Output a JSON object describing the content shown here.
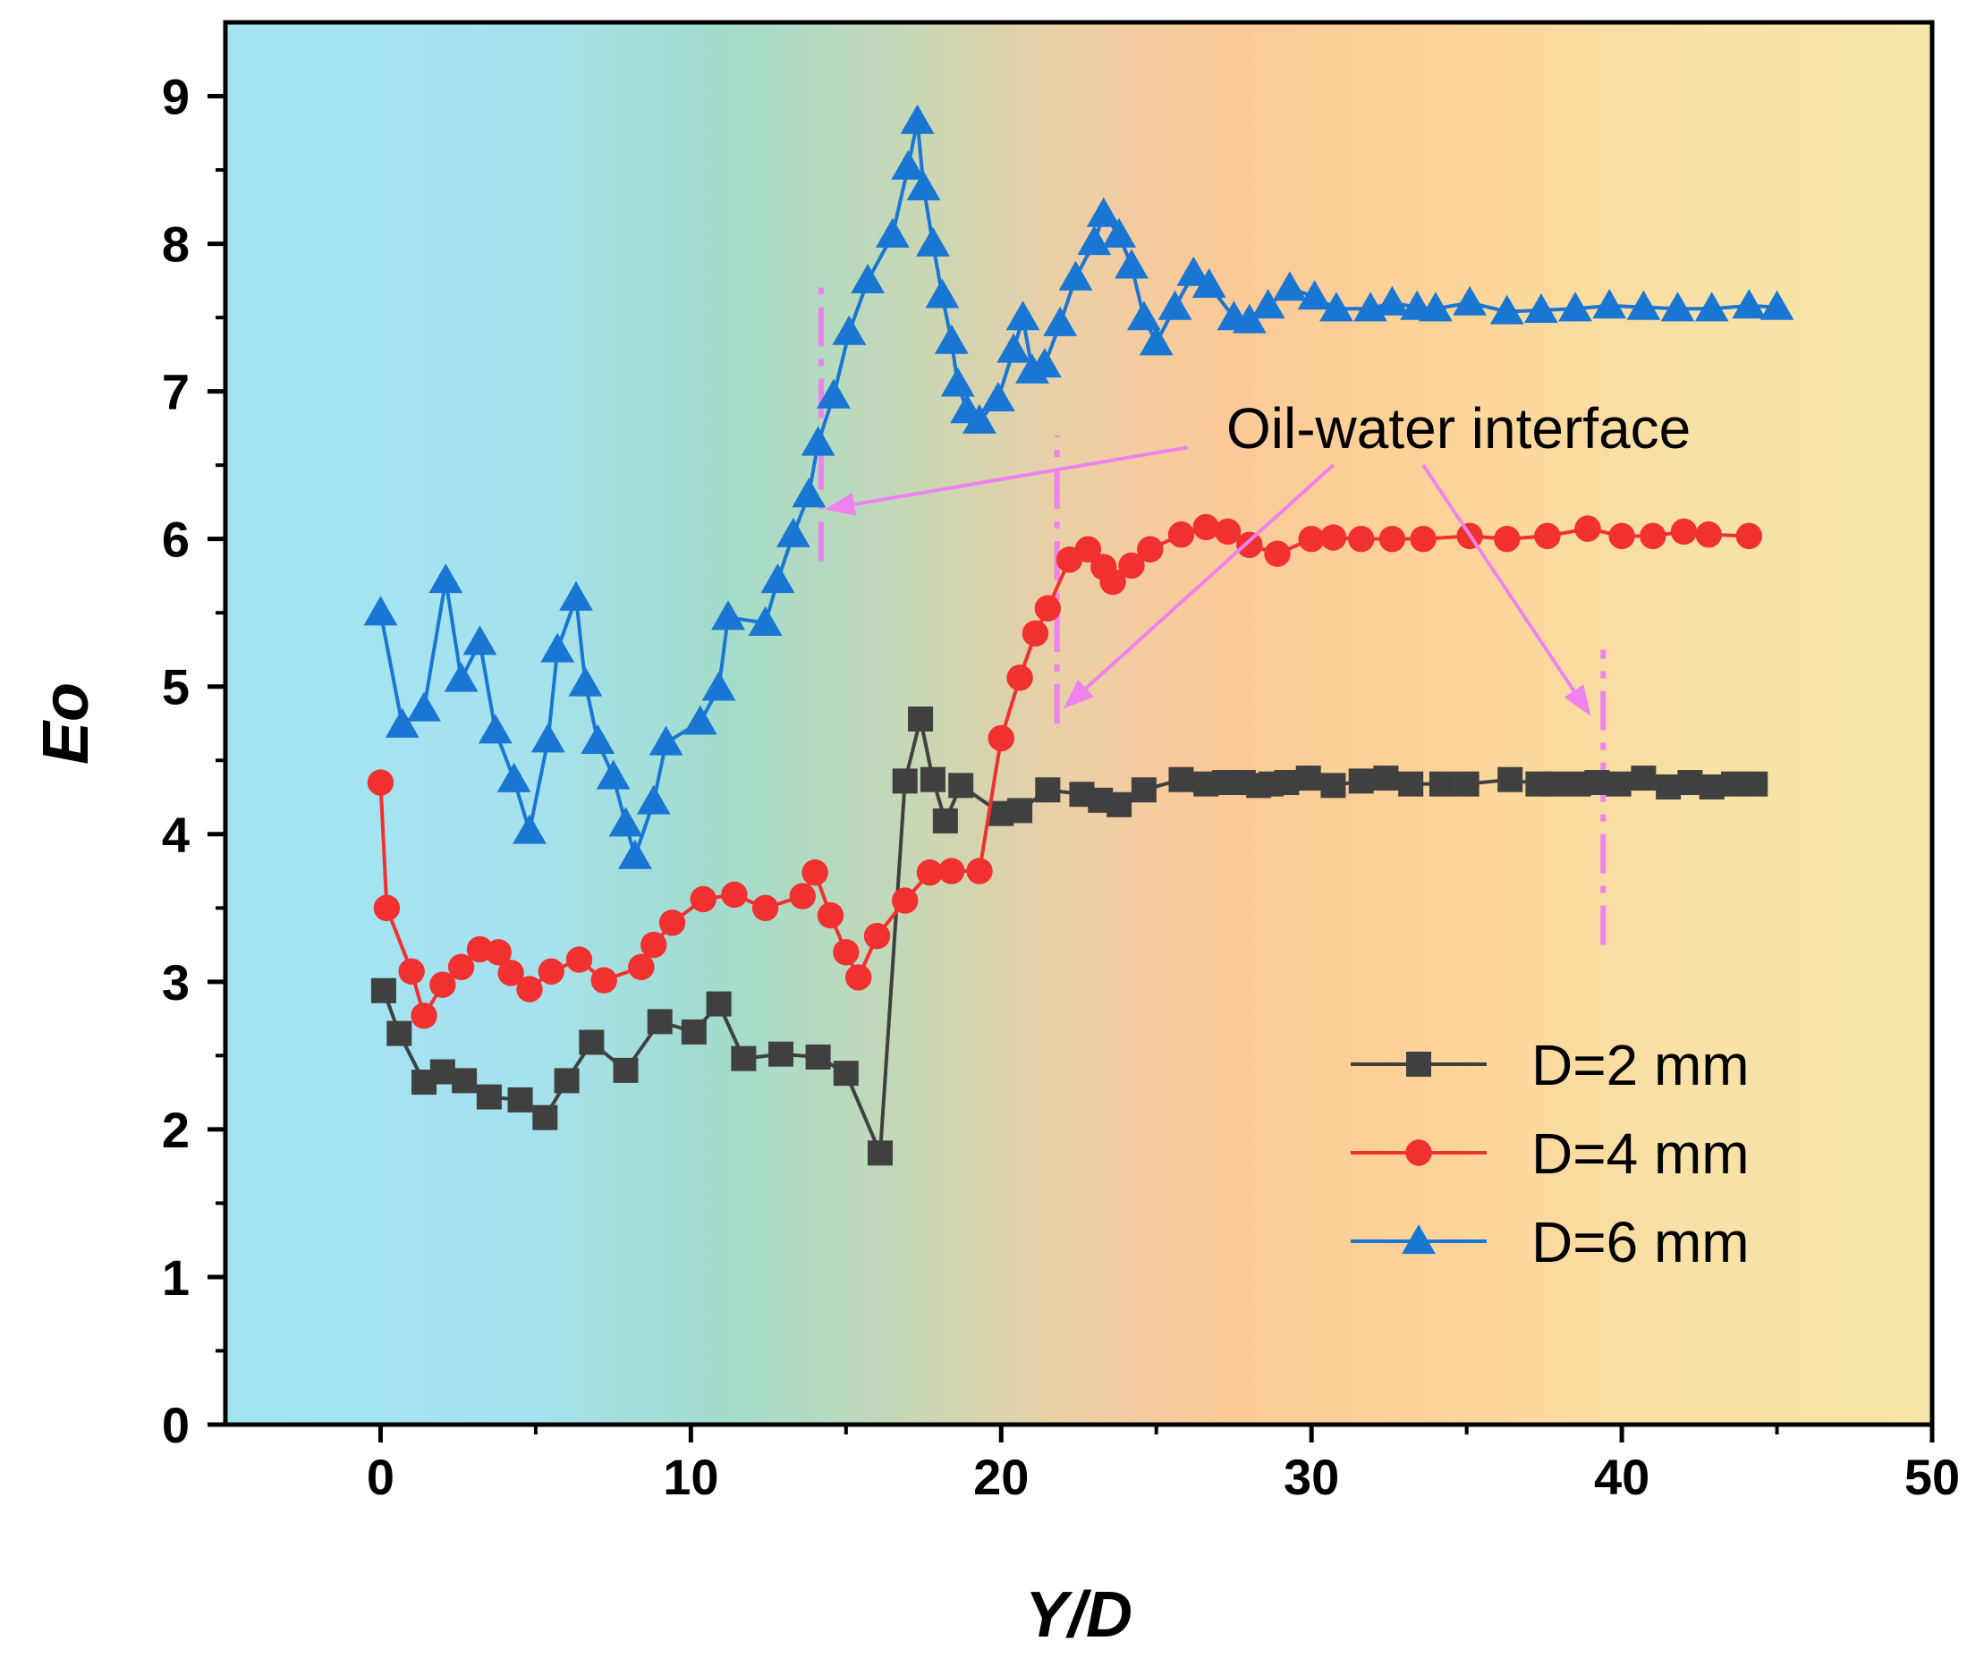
{
  "chart_data": {
    "type": "line",
    "title": "",
    "xlabel": "Y/D",
    "ylabel": "Eo",
    "xlim": [
      -5,
      50
    ],
    "ylim": [
      0,
      9.5
    ],
    "xticks": [
      0,
      10,
      20,
      30,
      40,
      50
    ],
    "yticks": [
      0,
      1,
      2,
      3,
      4,
      5,
      6,
      7,
      8,
      9
    ],
    "background": {
      "type": "horizontal-gradient",
      "stops": [
        {
          "x": -5,
          "color": "#a3e4f2"
        },
        {
          "x": 5,
          "color": "#a6e2ee"
        },
        {
          "x": 11,
          "color": "#a2dccc"
        },
        {
          "x": 17,
          "color": "#c6d8b6"
        },
        {
          "x": 22,
          "color": "#ebcfa6"
        },
        {
          "x": 27,
          "color": "#fcc998"
        },
        {
          "x": 34,
          "color": "#fdd398"
        },
        {
          "x": 42,
          "color": "#f8e1a6"
        },
        {
          "x": 50,
          "color": "#f7e6a9"
        }
      ]
    },
    "legend": {
      "position": "lower-right",
      "entries": [
        "D=2 mm",
        "D=4 mm",
        "D=6 mm"
      ]
    },
    "series": [
      {
        "name": "D=2 mm",
        "color": "#404040",
        "marker": "square",
        "x": [
          0.1,
          0.6,
          1.4,
          2.0,
          2.7,
          3.5,
          4.5,
          5.3,
          6.0,
          6.8,
          7.9,
          9.0,
          10.1,
          10.9,
          11.7,
          12.9,
          14.1,
          15.0,
          16.1,
          16.9,
          17.4,
          17.8,
          18.2,
          18.7,
          20.0,
          20.6,
          21.5,
          22.6,
          23.2,
          23.8,
          24.6,
          25.8,
          26.6,
          27.2,
          27.8,
          28.3,
          28.7,
          29.2,
          29.9,
          30.7,
          31.6,
          32.4,
          33.2,
          34.2,
          35.0,
          36.4,
          37.3,
          37.8,
          38.6,
          39.2,
          39.9,
          40.7,
          41.5,
          42.2,
          42.9,
          43.6,
          44.3
        ],
        "y": [
          2.94,
          2.65,
          2.32,
          2.39,
          2.33,
          2.22,
          2.2,
          2.08,
          2.33,
          2.59,
          2.4,
          2.73,
          2.66,
          2.85,
          2.48,
          2.51,
          2.49,
          2.38,
          1.84,
          4.36,
          4.78,
          4.37,
          4.09,
          4.33,
          4.14,
          4.16,
          4.3,
          4.27,
          4.23,
          4.2,
          4.3,
          4.37,
          4.34,
          4.35,
          4.35,
          4.33,
          4.34,
          4.35,
          4.38,
          4.33,
          4.36,
          4.38,
          4.34,
          4.34,
          4.34,
          4.37,
          4.34,
          4.34,
          4.34,
          4.35,
          4.34,
          4.38,
          4.32,
          4.35,
          4.32,
          4.34,
          4.34
        ]
      },
      {
        "name": "D=4 mm",
        "color": "#f13030",
        "marker": "circle",
        "x": [
          0.0,
          0.2,
          1.0,
          1.4,
          2.0,
          2.6,
          3.2,
          3.8,
          4.2,
          4.8,
          5.5,
          6.4,
          7.2,
          8.4,
          8.8,
          9.4,
          10.4,
          11.4,
          12.4,
          13.6,
          14.0,
          14.5,
          15.0,
          15.4,
          16.0,
          16.9,
          17.7,
          18.4,
          19.3,
          20.0,
          20.6,
          21.1,
          21.5,
          22.2,
          22.8,
          23.3,
          23.6,
          24.2,
          24.8,
          25.8,
          26.6,
          27.3,
          28.0,
          28.9,
          30.0,
          30.7,
          31.6,
          32.6,
          33.6,
          35.1,
          36.3,
          37.6,
          38.9,
          40.0,
          41.0,
          42.0,
          42.8,
          44.1
        ],
        "y": [
          4.35,
          3.5,
          3.07,
          2.77,
          2.98,
          3.1,
          3.22,
          3.2,
          3.06,
          2.95,
          3.07,
          3.15,
          3.01,
          3.1,
          3.25,
          3.4,
          3.56,
          3.59,
          3.5,
          3.58,
          3.74,
          3.45,
          3.2,
          3.03,
          3.31,
          3.55,
          3.74,
          3.75,
          3.75,
          4.65,
          5.06,
          5.36,
          5.53,
          5.86,
          5.93,
          5.81,
          5.71,
          5.82,
          5.93,
          6.03,
          6.08,
          6.05,
          5.96,
          5.9,
          6.0,
          6.01,
          6.0,
          6.0,
          6.0,
          6.02,
          6.0,
          6.02,
          6.07,
          6.02,
          6.02,
          6.05,
          6.03,
          6.02
        ]
      },
      {
        "name": "D=6 mm",
        "color": "#1976d2",
        "marker": "triangle",
        "x": [
          0.0,
          0.7,
          1.4,
          2.1,
          2.6,
          3.2,
          3.7,
          4.3,
          4.8,
          5.4,
          5.7,
          6.3,
          6.6,
          7.0,
          7.5,
          7.9,
          8.2,
          8.8,
          9.2,
          10.3,
          10.9,
          11.2,
          12.4,
          12.8,
          13.3,
          13.8,
          14.1,
          14.6,
          15.1,
          15.7,
          16.5,
          17.0,
          17.3,
          17.5,
          17.8,
          18.1,
          18.4,
          18.6,
          18.9,
          19.3,
          19.9,
          20.4,
          20.7,
          21.0,
          21.4,
          21.9,
          22.4,
          23.0,
          23.3,
          23.8,
          24.2,
          24.6,
          25.0,
          25.6,
          26.2,
          26.7,
          27.5,
          28.0,
          28.6,
          29.3,
          30.1,
          30.8,
          31.9,
          32.6,
          33.4,
          34.0,
          35.1,
          36.3,
          37.4,
          38.5,
          39.6,
          40.7,
          41.8,
          42.9,
          44.1,
          45.0
        ],
        "y": [
          5.5,
          4.74,
          4.85,
          5.72,
          5.05,
          5.3,
          4.7,
          4.37,
          4.02,
          4.64,
          5.25,
          5.6,
          5.02,
          4.63,
          4.39,
          4.07,
          3.85,
          4.22,
          4.62,
          4.76,
          4.99,
          5.47,
          5.43,
          5.72,
          6.03,
          6.3,
          6.65,
          6.97,
          7.4,
          7.75,
          8.06,
          8.52,
          8.83,
          8.38,
          8.0,
          7.65,
          7.34,
          7.05,
          6.87,
          6.8,
          6.95,
          7.28,
          7.5,
          7.14,
          7.18,
          7.46,
          7.77,
          8.01,
          8.2,
          8.06,
          7.85,
          7.5,
          7.33,
          7.57,
          7.8,
          7.72,
          7.5,
          7.48,
          7.58,
          7.7,
          7.64,
          7.56,
          7.56,
          7.6,
          7.57,
          7.56,
          7.6,
          7.54,
          7.55,
          7.56,
          7.58,
          7.57,
          7.56,
          7.56,
          7.58,
          7.57
        ]
      }
    ],
    "interfaces": [
      {
        "x": 14.2,
        "y_range": [
          5.85,
          7.75
        ]
      },
      {
        "x": 21.8,
        "y_range": [
          4.75,
          6.7
        ]
      },
      {
        "x": 39.4,
        "y_range": [
          3.25,
          5.25
        ]
      }
    ],
    "annotation": {
      "text": "Oil-water interface",
      "anchor": {
        "x": 35.0,
        "y": 6.75
      },
      "arrow_starts": [
        {
          "x": 26.0,
          "y": 6.62
        },
        {
          "x": 30.7,
          "y": 6.5
        },
        {
          "x": 33.6,
          "y": 6.5
        }
      ],
      "arrow_targets": [
        {
          "x": 14.3,
          "y": 6.2
        },
        {
          "x": 22.0,
          "y": 4.85
        },
        {
          "x": 39.0,
          "y": 4.8
        }
      ],
      "color": "#ee82ee"
    }
  }
}
